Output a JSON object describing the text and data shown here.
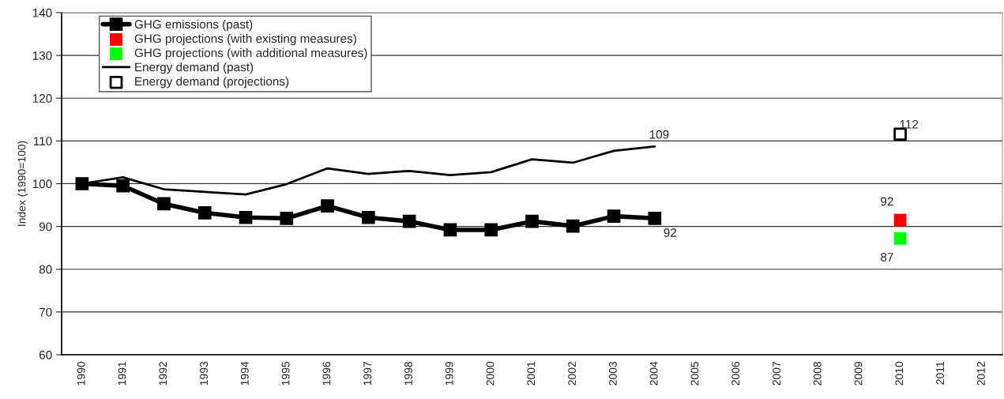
{
  "chart_data": {
    "type": "line",
    "ylabel": "Index (1990=100)",
    "categories": [
      "1990",
      "1991",
      "1992",
      "1993",
      "1994",
      "1995",
      "1996",
      "1997",
      "1998",
      "1999",
      "2000",
      "2001",
      "2002",
      "2003",
      "2004",
      "2005",
      "2006",
      "2007",
      "2008",
      "2009",
      "2010",
      "2011",
      "2012"
    ],
    "series": [
      {
        "name": "GHG emissions (past)",
        "marker": "square",
        "color": "#000000",
        "values": [
          100,
          99.5,
          95.3,
          93.2,
          92.1,
          91.9,
          94.8,
          92.1,
          91.2,
          89.2,
          89.2,
          91.2,
          90.1,
          92.4,
          91.9,
          null,
          null,
          null,
          null,
          null,
          null,
          null,
          null
        ],
        "value_labels": [
          null,
          null,
          null,
          null,
          null,
          null,
          null,
          null,
          null,
          null,
          null,
          null,
          null,
          null,
          "92",
          null,
          null,
          null,
          null,
          null,
          null,
          null,
          null
        ]
      },
      {
        "name": "GHG projections (with existing measures)",
        "type": "scatter",
        "marker": "square",
        "color": "#ff0000",
        "values": [
          null,
          null,
          null,
          null,
          null,
          null,
          null,
          null,
          null,
          null,
          null,
          null,
          null,
          null,
          null,
          null,
          null,
          null,
          null,
          null,
          91.5,
          null,
          null
        ],
        "value_labels": [
          null,
          null,
          null,
          null,
          null,
          null,
          null,
          null,
          null,
          null,
          null,
          null,
          null,
          null,
          null,
          null,
          null,
          null,
          null,
          null,
          "92",
          null,
          null
        ]
      },
      {
        "name": "GHG projections (with additional measures)",
        "type": "scatter",
        "marker": "square",
        "color": "#00ff00",
        "values": [
          null,
          null,
          null,
          null,
          null,
          null,
          null,
          null,
          null,
          null,
          null,
          null,
          null,
          null,
          null,
          null,
          null,
          null,
          null,
          null,
          87.2,
          null,
          null
        ],
        "value_labels": [
          null,
          null,
          null,
          null,
          null,
          null,
          null,
          null,
          null,
          null,
          null,
          null,
          null,
          null,
          null,
          null,
          null,
          null,
          null,
          null,
          "87",
          null,
          null
        ]
      },
      {
        "name": "Energy demand (past)",
        "marker": "none",
        "color": "#000000",
        "values": [
          100,
          101.5,
          98.7,
          98.1,
          97.5,
          99.9,
          103.6,
          102.3,
          103.0,
          102.0,
          102.7,
          105.7,
          104.9,
          107.7,
          108.7,
          null,
          null,
          null,
          null,
          null,
          null,
          null,
          null
        ],
        "value_labels": [
          null,
          null,
          null,
          null,
          null,
          null,
          null,
          null,
          null,
          null,
          null,
          null,
          null,
          null,
          "109",
          null,
          null,
          null,
          null,
          null,
          null,
          null,
          null
        ]
      },
      {
        "name": "Energy demand (projections)",
        "type": "scatter",
        "marker": "square",
        "color": "#000000",
        "values": [
          null,
          null,
          null,
          null,
          null,
          null,
          null,
          null,
          null,
          null,
          null,
          null,
          null,
          null,
          null,
          null,
          null,
          null,
          null,
          null,
          111.6,
          null,
          null
        ],
        "value_labels": [
          null,
          null,
          null,
          null,
          null,
          null,
          null,
          null,
          null,
          null,
          null,
          null,
          null,
          null,
          null,
          null,
          null,
          null,
          null,
          null,
          "112",
          null,
          null
        ]
      }
    ],
    "ylim": [
      60,
      140
    ],
    "yticks": [
      60,
      70,
      80,
      90,
      100,
      110,
      120,
      130,
      140
    ],
    "grid": "y",
    "legend": "top left"
  }
}
